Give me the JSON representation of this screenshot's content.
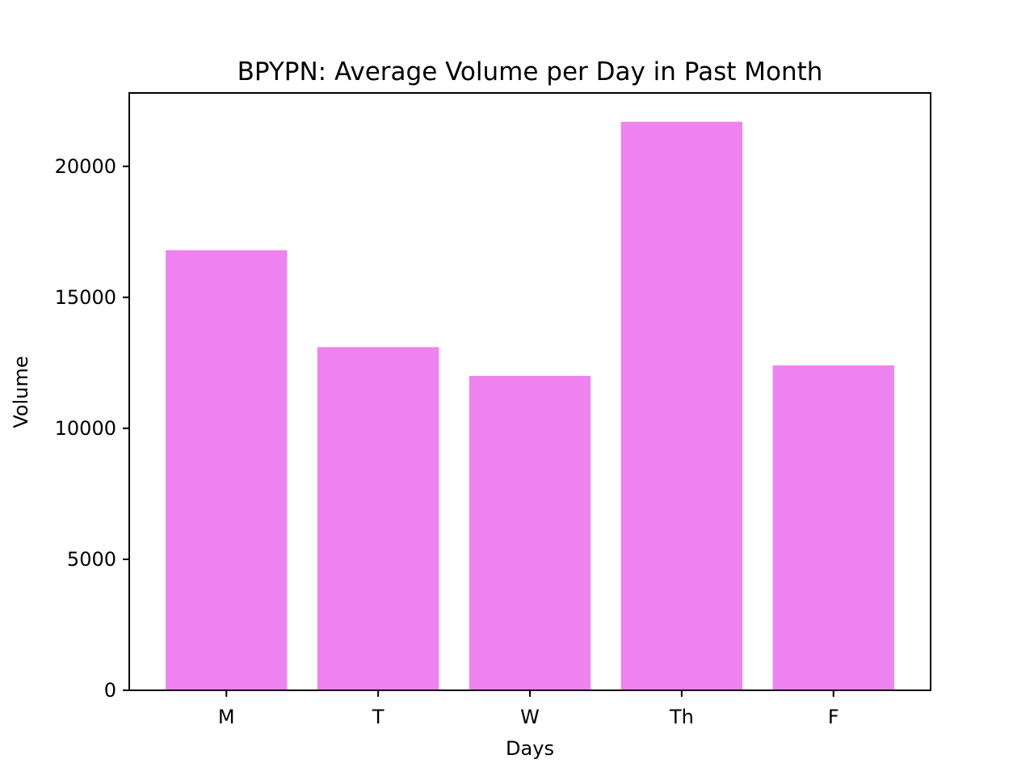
{
  "chart_data": {
    "type": "bar",
    "title": "BPYPN: Average Volume per Day in Past Month",
    "xlabel": "Days",
    "ylabel": "Volume",
    "categories": [
      "M",
      "T",
      "W",
      "Th",
      "F"
    ],
    "values": [
      16800,
      13100,
      12000,
      21700,
      12400
    ],
    "ylim": [
      0,
      22800
    ],
    "yticks": [
      0,
      5000,
      10000,
      15000,
      20000
    ],
    "bar_color": "#ee82ee",
    "grid": false,
    "legend": "none"
  }
}
